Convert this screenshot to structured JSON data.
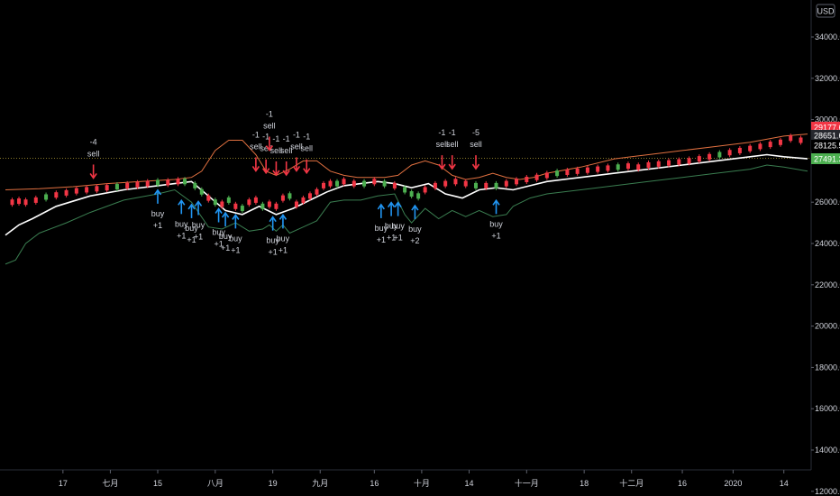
{
  "chart_data": {
    "type": "line",
    "currency_button": "USD",
    "ylim": [
      11000,
      36000
    ],
    "y_ticks": [
      "34000.0",
      "32000.0",
      "30000.0",
      "28000.0",
      "26000.0",
      "24000.0",
      "22000.0",
      "20000.0",
      "18000.0",
      "16000.0",
      "14000.0",
      "12000.0"
    ],
    "y_tick_values": [
      34000,
      32000,
      30000,
      28000,
      26000,
      24000,
      22000,
      20000,
      18000,
      16000,
      14000,
      12000
    ],
    "top_partial_tick": "36000.0",
    "x_ticks": [
      "17",
      "七月",
      "15",
      "八月",
      "19",
      "九月",
      "16",
      "十月",
      "14",
      "十一月",
      "18",
      "十二月",
      "16",
      "2020",
      "14"
    ],
    "x_tick_days": [
      17,
      31,
      45,
      62,
      79,
      93,
      109,
      123,
      137,
      154,
      171,
      185,
      200,
      215,
      230
    ],
    "xlim": [
      0,
      237
    ],
    "price_tags": [
      {
        "label": "29177.6",
        "value": 29177.6,
        "color": "#f23645",
        "text": "#ffffff"
      },
      {
        "label": "28651.6",
        "value": 28651.6,
        "color": "#26282e",
        "text": "#ffffff"
      },
      {
        "label": "28125.5",
        "value": 28125.5,
        "color": "#000000",
        "text": "#ffffff"
      },
      {
        "label": "27491.3",
        "value": 27491.3,
        "color": "#4caf50",
        "text": "#ffffff"
      }
    ],
    "reference_level": 28125.5,
    "series": [
      {
        "color": "#e07040",
        "x": [
          0,
          10,
          20,
          30,
          40,
          50,
          55,
          58,
          62,
          66,
          70,
          74,
          77,
          80,
          84,
          88,
          92,
          96,
          100,
          104,
          108,
          112,
          116,
          120,
          124,
          128,
          132,
          136,
          140,
          144,
          148,
          152,
          156,
          160,
          170,
          180,
          185,
          190,
          200,
          210,
          220,
          230,
          237
        ],
        "y": [
          26600,
          26650,
          26750,
          26900,
          27000,
          27100,
          27200,
          27500,
          28500,
          29000,
          29000,
          28300,
          27500,
          27300,
          27600,
          28000,
          28000,
          27500,
          27300,
          27200,
          27200,
          27200,
          27300,
          27800,
          28000,
          27800,
          27300,
          27100,
          27200,
          27400,
          27200,
          27100,
          27200,
          27400,
          27700,
          28100,
          28200,
          28300,
          28500,
          28700,
          28900,
          29200,
          29300
        ]
      },
      {
        "color": "#ffffff",
        "x": [
          0,
          4,
          8,
          15,
          25,
          35,
          45,
          50,
          55,
          60,
          65,
          70,
          75,
          80,
          85,
          90,
          95,
          100,
          105,
          110,
          115,
          120,
          125,
          130,
          135,
          140,
          145,
          150,
          155,
          160,
          170,
          180,
          185,
          190,
          200,
          210,
          220,
          225,
          230,
          237
        ],
        "y": [
          24400,
          24900,
          25200,
          25800,
          26300,
          26600,
          26800,
          26900,
          27000,
          26300,
          25600,
          25400,
          25800,
          25400,
          25700,
          26100,
          26500,
          26800,
          26900,
          27000,
          26900,
          26700,
          26900,
          26400,
          26200,
          26600,
          26700,
          26600,
          26800,
          27000,
          27200,
          27400,
          27500,
          27600,
          27800,
          28000,
          28200,
          28300,
          28200,
          28100
        ]
      },
      {
        "color": "#3a7d50",
        "x": [
          0,
          3,
          6,
          10,
          18,
          25,
          35,
          45,
          50,
          55,
          60,
          64,
          68,
          72,
          76,
          78,
          80,
          82,
          84,
          88,
          92,
          96,
          100,
          105,
          110,
          115,
          118,
          120,
          124,
          128,
          132,
          136,
          140,
          144,
          148,
          150,
          155,
          160,
          170,
          180,
          190,
          200,
          210,
          220,
          225,
          230,
          237
        ],
        "y": [
          23000,
          23200,
          24000,
          24500,
          25000,
          25500,
          26100,
          26400,
          26600,
          26000,
          24800,
          24700,
          25000,
          24600,
          24700,
          24900,
          24600,
          24900,
          24500,
          24800,
          25100,
          26000,
          26100,
          26100,
          26300,
          26400,
          25400,
          25000,
          25700,
          25200,
          25600,
          25300,
          25600,
          25300,
          25400,
          25800,
          26200,
          26400,
          26600,
          26800,
          27000,
          27200,
          27400,
          27600,
          27800,
          27700,
          27500
        ]
      }
    ],
    "candles": [
      {
        "x": 2,
        "y": 26000,
        "up": false
      },
      {
        "x": 4,
        "y": 26050,
        "up": false
      },
      {
        "x": 6,
        "y": 26000,
        "up": false
      },
      {
        "x": 9,
        "y": 26100,
        "up": false
      },
      {
        "x": 12,
        "y": 26250,
        "up": true
      },
      {
        "x": 15,
        "y": 26350,
        "up": false
      },
      {
        "x": 18,
        "y": 26450,
        "up": false
      },
      {
        "x": 21,
        "y": 26550,
        "up": false
      },
      {
        "x": 24,
        "y": 26600,
        "up": false
      },
      {
        "x": 27,
        "y": 26650,
        "up": false
      },
      {
        "x": 30,
        "y": 26700,
        "up": false
      },
      {
        "x": 33,
        "y": 26750,
        "up": true
      },
      {
        "x": 36,
        "y": 26800,
        "up": false
      },
      {
        "x": 39,
        "y": 26850,
        "up": false
      },
      {
        "x": 42,
        "y": 26900,
        "up": false
      },
      {
        "x": 45,
        "y": 26950,
        "up": true
      },
      {
        "x": 48,
        "y": 26950,
        "up": false
      },
      {
        "x": 51,
        "y": 27000,
        "up": false
      },
      {
        "x": 53,
        "y": 27000,
        "up": true
      },
      {
        "x": 56,
        "y": 26800,
        "up": true
      },
      {
        "x": 58,
        "y": 26500,
        "up": true
      },
      {
        "x": 60,
        "y": 26200,
        "up": false
      },
      {
        "x": 62,
        "y": 26000,
        "up": true
      },
      {
        "x": 64,
        "y": 25900,
        "up": false
      },
      {
        "x": 66,
        "y": 26100,
        "up": true
      },
      {
        "x": 68,
        "y": 25800,
        "up": false
      },
      {
        "x": 70,
        "y": 25700,
        "up": true
      },
      {
        "x": 72,
        "y": 26000,
        "up": false
      },
      {
        "x": 74,
        "y": 26100,
        "up": false
      },
      {
        "x": 76,
        "y": 25800,
        "up": true
      },
      {
        "x": 78,
        "y": 25900,
        "up": false
      },
      {
        "x": 80,
        "y": 25800,
        "up": false
      },
      {
        "x": 82,
        "y": 26200,
        "up": false
      },
      {
        "x": 84,
        "y": 26300,
        "up": true
      },
      {
        "x": 86,
        "y": 25900,
        "up": false
      },
      {
        "x": 88,
        "y": 26100,
        "up": false
      },
      {
        "x": 90,
        "y": 26300,
        "up": false
      },
      {
        "x": 92,
        "y": 26500,
        "up": false
      },
      {
        "x": 94,
        "y": 26800,
        "up": false
      },
      {
        "x": 96,
        "y": 26900,
        "up": false
      },
      {
        "x": 98,
        "y": 26900,
        "up": true
      },
      {
        "x": 100,
        "y": 27000,
        "up": false
      },
      {
        "x": 103,
        "y": 26900,
        "up": false
      },
      {
        "x": 106,
        "y": 26900,
        "up": true
      },
      {
        "x": 109,
        "y": 27000,
        "up": false
      },
      {
        "x": 112,
        "y": 26900,
        "up": true
      },
      {
        "x": 115,
        "y": 26800,
        "up": false
      },
      {
        "x": 118,
        "y": 26600,
        "up": true
      },
      {
        "x": 120,
        "y": 26400,
        "up": true
      },
      {
        "x": 122,
        "y": 26300,
        "up": true
      },
      {
        "x": 124,
        "y": 26600,
        "up": false
      },
      {
        "x": 127,
        "y": 26800,
        "up": false
      },
      {
        "x": 130,
        "y": 26900,
        "up": false
      },
      {
        "x": 133,
        "y": 27000,
        "up": false
      },
      {
        "x": 136,
        "y": 26900,
        "up": false
      },
      {
        "x": 139,
        "y": 26800,
        "up": true
      },
      {
        "x": 142,
        "y": 26800,
        "up": false
      },
      {
        "x": 145,
        "y": 26800,
        "up": true
      },
      {
        "x": 148,
        "y": 26900,
        "up": false
      },
      {
        "x": 151,
        "y": 27000,
        "up": false
      },
      {
        "x": 154,
        "y": 27100,
        "up": false
      },
      {
        "x": 157,
        "y": 27200,
        "up": false
      },
      {
        "x": 160,
        "y": 27300,
        "up": false
      },
      {
        "x": 163,
        "y": 27400,
        "up": true
      },
      {
        "x": 166,
        "y": 27450,
        "up": false
      },
      {
        "x": 169,
        "y": 27500,
        "up": false
      },
      {
        "x": 172,
        "y": 27550,
        "up": false
      },
      {
        "x": 175,
        "y": 27600,
        "up": false
      },
      {
        "x": 178,
        "y": 27650,
        "up": false
      },
      {
        "x": 181,
        "y": 27700,
        "up": true
      },
      {
        "x": 184,
        "y": 27750,
        "up": false
      },
      {
        "x": 187,
        "y": 27700,
        "up": false
      },
      {
        "x": 190,
        "y": 27800,
        "up": false
      },
      {
        "x": 193,
        "y": 27850,
        "up": false
      },
      {
        "x": 196,
        "y": 27900,
        "up": false
      },
      {
        "x": 199,
        "y": 27950,
        "up": false
      },
      {
        "x": 202,
        "y": 28000,
        "up": false
      },
      {
        "x": 205,
        "y": 28100,
        "up": false
      },
      {
        "x": 208,
        "y": 28200,
        "up": false
      },
      {
        "x": 211,
        "y": 28300,
        "up": true
      },
      {
        "x": 214,
        "y": 28400,
        "up": false
      },
      {
        "x": 217,
        "y": 28500,
        "up": false
      },
      {
        "x": 220,
        "y": 28600,
        "up": false
      },
      {
        "x": 223,
        "y": 28700,
        "up": false
      },
      {
        "x": 226,
        "y": 28800,
        "up": false
      },
      {
        "x": 229,
        "y": 28900,
        "up": false
      },
      {
        "x": 232,
        "y": 29100,
        "up": false
      },
      {
        "x": 235,
        "y": 29000,
        "up": false
      }
    ],
    "sell_signals": [
      {
        "x": 26,
        "label": [
          "-4",
          "sell"
        ],
        "y_tip": 26950
      },
      {
        "x": 74,
        "label": [
          "-1",
          "sell"
        ],
        "y_tip": 27300
      },
      {
        "x": 77,
        "label": [
          "-1",
          "sell"
        ],
        "y_tip": 27200
      },
      {
        "x": 80,
        "label": [
          "-1",
          "sell"
        ],
        "y_tip": 27100
      },
      {
        "x": 83,
        "label": [
          "-1",
          "sell"
        ],
        "y_tip": 27100
      },
      {
        "x": 86,
        "label": [
          "-1",
          "sell"
        ],
        "y_tip": 27300
      },
      {
        "x": 89,
        "label": [
          "-1",
          "sell"
        ],
        "y_tip": 27200
      },
      {
        "x": 78,
        "label": [
          "-1",
          "sell"
        ],
        "y_tip": 28300
      },
      {
        "x": 129,
        "label": [
          "-1",
          "sell"
        ],
        "y_tip": 27400
      },
      {
        "x": 132,
        "label": [
          "-1",
          "sell"
        ],
        "y_tip": 27400
      },
      {
        "x": 139,
        "label": [
          "-5",
          "sell"
        ],
        "y_tip": 27400
      }
    ],
    "buy_signals": [
      {
        "x": 45,
        "label": [
          "buy",
          "+1"
        ],
        "y_tip": 26800
      },
      {
        "x": 52,
        "label": [
          "buy",
          "+1"
        ],
        "y_tip": 26300
      },
      {
        "x": 55,
        "label": [
          "buy",
          "+1"
        ],
        "y_tip": 26100
      },
      {
        "x": 57,
        "label": [
          "buy",
          "+1"
        ],
        "y_tip": 26250
      },
      {
        "x": 63,
        "label": [
          "buy",
          "+1"
        ],
        "y_tip": 25900
      },
      {
        "x": 65,
        "label": [
          "buy",
          "+1"
        ],
        "y_tip": 25700
      },
      {
        "x": 68,
        "label": [
          "buy",
          "+1"
        ],
        "y_tip": 25600
      },
      {
        "x": 79,
        "label": [
          "buy",
          "+1"
        ],
        "y_tip": 25500
      },
      {
        "x": 82,
        "label": [
          "buy",
          "+1"
        ],
        "y_tip": 25600
      },
      {
        "x": 111,
        "label": [
          "buy",
          "+1"
        ],
        "y_tip": 26100
      },
      {
        "x": 114,
        "label": [
          "buy",
          "+1"
        ],
        "y_tip": 26200
      },
      {
        "x": 116,
        "label": [
          "buy",
          "+1"
        ],
        "y_tip": 26200
      },
      {
        "x": 121,
        "label": [
          "buy",
          "+2"
        ],
        "y_tip": 26050
      },
      {
        "x": 145,
        "label": [
          "buy",
          "+1"
        ],
        "y_tip": 26300
      }
    ]
  }
}
